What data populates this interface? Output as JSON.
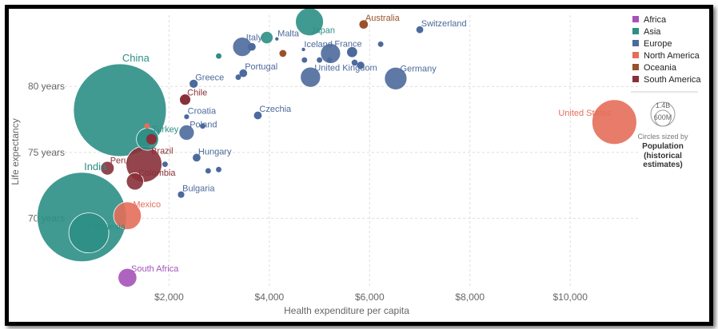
{
  "colors": {
    "Africa": "#a652ba",
    "Asia": "#2c8f86",
    "Europe": "#4c6a9c",
    "North America": "#e56e5a",
    "Oceania": "#9a5129",
    "South America": "#883039",
    "grid": "#dddddd",
    "axis_text": "#666666"
  },
  "chart_data": {
    "type": "scatter",
    "xlabel": "Health expenditure per capita",
    "ylabel": "Life expectancy",
    "xlim": [
      0,
      11400
    ],
    "ylim": [
      64.7,
      85.4
    ],
    "x_ticks": [
      2000,
      4000,
      6000,
      8000,
      10000
    ],
    "x_tick_labels": [
      "$2,000",
      "$4,000",
      "$6,000",
      "$8,000",
      "$10,000"
    ],
    "y_ticks": [
      70,
      75,
      80
    ],
    "y_tick_labels": [
      "70 years",
      "75 years",
      "80 years"
    ],
    "grid": "vertical dotted",
    "legend_position": "right",
    "legend": [
      "Africa",
      "Asia",
      "Europe",
      "North America",
      "Oceania",
      "South America"
    ],
    "size_legend": {
      "values": [
        "1.4B",
        "600M"
      ],
      "note": "Circles sized by",
      "measure": "Population",
      "measure_note": "(historical estimates)"
    },
    "points": [
      {
        "label": "China",
        "x": 1020,
        "y": 78.2,
        "continent": "Asia",
        "pop": 1400
      },
      {
        "label": "India",
        "x": 260,
        "y": 70.1,
        "continent": "Asia",
        "pop": 1300
      },
      {
        "label": "Indonesia",
        "x": 400,
        "y": 68.9,
        "continent": "Asia",
        "pop": 260
      },
      {
        "label": "Japan",
        "x": 4800,
        "y": 84.9,
        "continent": "Asia",
        "pop": 127
      },
      {
        "label": "Turkey",
        "x": 1570,
        "y": 76.0,
        "continent": "Asia",
        "pop": 80
      },
      {
        "label": "",
        "x": 3950,
        "y": 83.7,
        "continent": "Asia",
        "pop": 25
      },
      {
        "label": "",
        "x": 2990,
        "y": 82.3,
        "continent": "Asia",
        "pop": 5
      },
      {
        "label": "United States",
        "x": 10880,
        "y": 77.3,
        "continent": "North America",
        "pop": 325
      },
      {
        "label": "Mexico",
        "x": 1170,
        "y": 70.2,
        "continent": "North America",
        "pop": 125
      },
      {
        "label": "",
        "x": 1560,
        "y": 77.0,
        "continent": "North America",
        "pop": 5
      },
      {
        "label": "Australia",
        "x": 5880,
        "y": 84.7,
        "continent": "Oceania",
        "pop": 12
      },
      {
        "label": "",
        "x": 4270,
        "y": 82.5,
        "continent": "Oceania",
        "pop": 8
      },
      {
        "label": "Brazil",
        "x": 1500,
        "y": 74.1,
        "continent": "South America",
        "pop": 210
      },
      {
        "label": "Peru",
        "x": 770,
        "y": 73.8,
        "continent": "South America",
        "pop": 30
      },
      {
        "label": "Colombia",
        "x": 1320,
        "y": 72.8,
        "continent": "South America",
        "pop": 48
      },
      {
        "label": "Chile",
        "x": 2320,
        "y": 79.0,
        "continent": "South America",
        "pop": 18
      },
      {
        "label": "",
        "x": 1650,
        "y": 76.0,
        "continent": "South America",
        "pop": 18
      },
      {
        "label": "South Africa",
        "x": 1170,
        "y": 65.5,
        "continent": "Africa",
        "pop": 57
      },
      {
        "label": "Switzerland",
        "x": 7000,
        "y": 84.3,
        "continent": "Europe",
        "pop": 8
      },
      {
        "label": "Italy",
        "x": 3460,
        "y": 83.0,
        "continent": "Europe",
        "pop": 60
      },
      {
        "label": "Malta",
        "x": 4150,
        "y": 83.6,
        "continent": "Europe",
        "pop": 2
      },
      {
        "label": "Iceland",
        "x": 4680,
        "y": 82.8,
        "continent": "Europe",
        "pop": 2
      },
      {
        "label": "France",
        "x": 5220,
        "y": 82.5,
        "continent": "Europe",
        "pop": 65
      },
      {
        "label": "Portugal",
        "x": 3480,
        "y": 81.0,
        "continent": "Europe",
        "pop": 10
      },
      {
        "label": "United Kingdom",
        "x": 4820,
        "y": 80.7,
        "continent": "Europe",
        "pop": 66
      },
      {
        "label": "Germany",
        "x": 6520,
        "y": 80.6,
        "continent": "Europe",
        "pop": 82
      },
      {
        "label": "Greece",
        "x": 2490,
        "y": 80.2,
        "continent": "Europe",
        "pop": 11
      },
      {
        "label": "Croatia",
        "x": 2350,
        "y": 77.7,
        "continent": "Europe",
        "pop": 4
      },
      {
        "label": "Czechia",
        "x": 3770,
        "y": 77.8,
        "continent": "Europe",
        "pop": 10
      },
      {
        "label": "Poland",
        "x": 2350,
        "y": 76.5,
        "continent": "Europe",
        "pop": 38
      },
      {
        "label": "Hungary",
        "x": 2550,
        "y": 74.6,
        "continent": "Europe",
        "pop": 10
      },
      {
        "label": "Bulgaria",
        "x": 2240,
        "y": 71.8,
        "continent": "Europe",
        "pop": 7
      },
      {
        "label": "",
        "x": 3650,
        "y": 83.0,
        "continent": "Europe",
        "pop": 10
      },
      {
        "label": "",
        "x": 4700,
        "y": 82.0,
        "continent": "Europe",
        "pop": 5
      },
      {
        "label": "",
        "x": 5000,
        "y": 82.0,
        "continent": "Europe",
        "pop": 5
      },
      {
        "label": "",
        "x": 5200,
        "y": 82.0,
        "continent": "Europe",
        "pop": 4
      },
      {
        "label": "",
        "x": 5700,
        "y": 81.8,
        "continent": "Europe",
        "pop": 6
      },
      {
        "label": "",
        "x": 5820,
        "y": 81.6,
        "continent": "Europe",
        "pop": 9
      },
      {
        "label": "",
        "x": 6220,
        "y": 83.2,
        "continent": "Europe",
        "pop": 5
      },
      {
        "label": "",
        "x": 5650,
        "y": 82.6,
        "continent": "Europe",
        "pop": 17
      },
      {
        "label": "",
        "x": 3380,
        "y": 80.7,
        "continent": "Europe",
        "pop": 5
      },
      {
        "label": "",
        "x": 2780,
        "y": 73.6,
        "continent": "Europe",
        "pop": 5
      },
      {
        "label": "",
        "x": 2990,
        "y": 73.7,
        "continent": "Europe",
        "pop": 5
      },
      {
        "label": "",
        "x": 1920,
        "y": 74.1,
        "continent": "Europe",
        "pop": 5
      },
      {
        "label": "",
        "x": 2670,
        "y": 77.0,
        "continent": "Europe",
        "pop": 5
      }
    ]
  }
}
